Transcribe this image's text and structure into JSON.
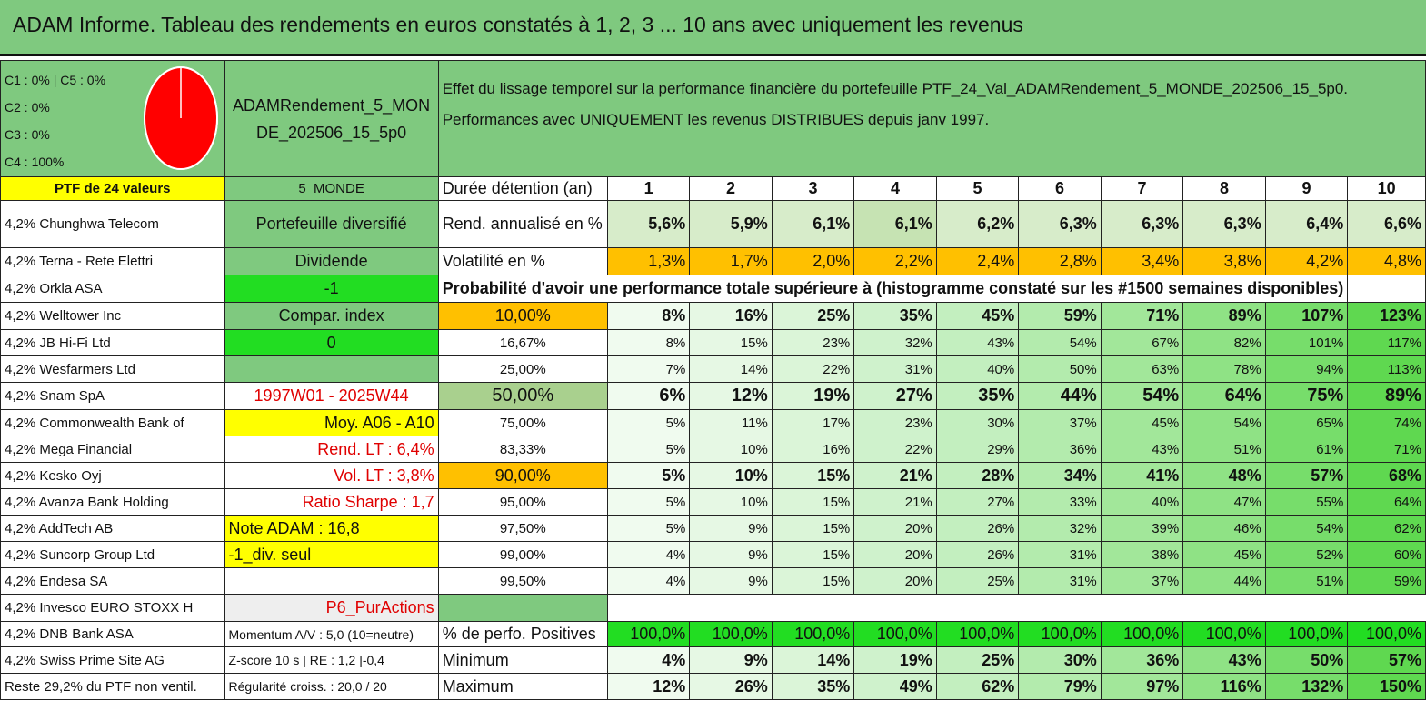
{
  "title": "ADAM Informe. Tableau des rendements en euros constatés à 1, 2, 3 ... 10 ans avec uniquement les revenus",
  "composition": [
    "C1 : 0% | C5 : 0%",
    "C2 : 0%",
    "C3 : 0%",
    "C4 : 100%"
  ],
  "pie": {
    "colors": [
      "#ff0000"
    ],
    "c4_fraction": 1.0
  },
  "ptf_name": "ADAMRendement_5_MONDE_202506_15_5p0",
  "effet_text": "Effet du lissage temporel sur la performance financière du portefeuille PTF_24_Val_ADAMRendement_5_MONDE_202506_15_5p0. Performances avec UNIQUEMENT les revenus DISTRIBUES depuis janv 1997.",
  "ptf_count": "PTF de 24 valeurs",
  "zone": "5_MONDE",
  "duree_label": "Durée détention (an)",
  "years": [
    "1",
    "2",
    "3",
    "4",
    "5",
    "6",
    "7",
    "8",
    "9",
    "10"
  ],
  "holdings": [
    "4,2% Chunghwa Telecom",
    "4,2% Terna - Rete Elettri",
    "4,2% Orkla ASA",
    "4,2% Welltower Inc",
    "4,2% JB Hi-Fi Ltd",
    "4,2% Wesfarmers Ltd",
    "4,2% Snam SpA",
    "4,2% Commonwealth Bank of",
    "4,2% Mega Financial",
    "4,2% Kesko Oyj",
    "4,2% Avanza Bank Holding",
    "4,2% AddTech AB",
    "4,2% Suncorp Group Ltd",
    "4,2% Endesa SA",
    "4,2% Invesco EURO STOXX H",
    "4,2% DNB Bank ASA",
    "4,2% Swiss Prime Site AG",
    "Reste 29,2% du PTF non ventil."
  ],
  "info": {
    "diversifie": "Portefeuille diversifié",
    "dividende": "Dividende",
    "minus1": "-1",
    "compar": "Compar. index",
    "zero": "0",
    "period": "1997W01 - 2025W44",
    "moy": "Moy. A06 - A10",
    "rend_lt": "Rend. LT : 6,4%",
    "vol_lt": "Vol. LT : 3,8%",
    "sharpe": "Ratio Sharpe : 1,7",
    "note": "Note ADAM : 16,8",
    "div_seul": "-1_div. seul",
    "p6": "P6_PurActions",
    "momentum": "Momentum A/V : 5,0 (10=neutre)",
    "zscore": "Z-score 10 s | RE : 1,2 |-0,4",
    "regularite": "Régularité croiss. : 20,0 / 20"
  },
  "rend_label": "Rend. annualisé en %",
  "rend": [
    "5,6%",
    "5,9%",
    "6,1%",
    "6,1%",
    "6,2%",
    "6,3%",
    "6,3%",
    "6,3%",
    "6,4%",
    "6,6%"
  ],
  "vol_label": "Volatilité en %",
  "vol": [
    "1,3%",
    "1,7%",
    "2,0%",
    "2,2%",
    "2,4%",
    "2,8%",
    "3,4%",
    "3,8%",
    "4,2%",
    "4,8%"
  ],
  "proba_title": "Probabilité d'avoir une performance totale supérieure à (histogramme constaté sur les #1500 semaines disponibles)",
  "quantiles": [
    {
      "p": "10,00%",
      "v": [
        "8%",
        "16%",
        "25%",
        "35%",
        "45%",
        "59%",
        "71%",
        "89%",
        "107%",
        "123%"
      ]
    },
    {
      "p": "16,67%",
      "v": [
        "8%",
        "15%",
        "23%",
        "32%",
        "43%",
        "54%",
        "67%",
        "82%",
        "101%",
        "117%"
      ]
    },
    {
      "p": "25,00%",
      "v": [
        "7%",
        "14%",
        "22%",
        "31%",
        "40%",
        "50%",
        "63%",
        "78%",
        "94%",
        "113%"
      ]
    },
    {
      "p": "50,00%",
      "v": [
        "6%",
        "12%",
        "19%",
        "27%",
        "35%",
        "44%",
        "54%",
        "64%",
        "75%",
        "89%"
      ]
    },
    {
      "p": "75,00%",
      "v": [
        "5%",
        "11%",
        "17%",
        "23%",
        "30%",
        "37%",
        "45%",
        "54%",
        "65%",
        "74%"
      ]
    },
    {
      "p": "83,33%",
      "v": [
        "5%",
        "10%",
        "16%",
        "22%",
        "29%",
        "36%",
        "43%",
        "51%",
        "61%",
        "71%"
      ]
    },
    {
      "p": "90,00%",
      "v": [
        "5%",
        "10%",
        "15%",
        "21%",
        "28%",
        "34%",
        "41%",
        "48%",
        "57%",
        "68%"
      ]
    },
    {
      "p": "95,00%",
      "v": [
        "5%",
        "10%",
        "15%",
        "21%",
        "27%",
        "33%",
        "40%",
        "47%",
        "55%",
        "64%"
      ]
    },
    {
      "p": "97,50%",
      "v": [
        "5%",
        "9%",
        "15%",
        "20%",
        "26%",
        "32%",
        "39%",
        "46%",
        "54%",
        "62%"
      ]
    },
    {
      "p": "99,00%",
      "v": [
        "4%",
        "9%",
        "15%",
        "20%",
        "26%",
        "31%",
        "38%",
        "45%",
        "52%",
        "60%"
      ]
    },
    {
      "p": "99,50%",
      "v": [
        "4%",
        "9%",
        "15%",
        "20%",
        "25%",
        "31%",
        "37%",
        "44%",
        "51%",
        "59%"
      ]
    }
  ],
  "pos_label": "% de perfo. Positives",
  "pos": [
    "100,0%",
    "100,0%",
    "100,0%",
    "100,0%",
    "100,0%",
    "100,0%",
    "100,0%",
    "100,0%",
    "100,0%",
    "100,0%"
  ],
  "min_label": "Minimum",
  "min": [
    "4%",
    "9%",
    "14%",
    "19%",
    "25%",
    "30%",
    "36%",
    "43%",
    "50%",
    "57%"
  ],
  "max_label": "Maximum",
  "max": [
    "12%",
    "26%",
    "35%",
    "49%",
    "62%",
    "79%",
    "97%",
    "116%",
    "132%",
    "150%"
  ]
}
